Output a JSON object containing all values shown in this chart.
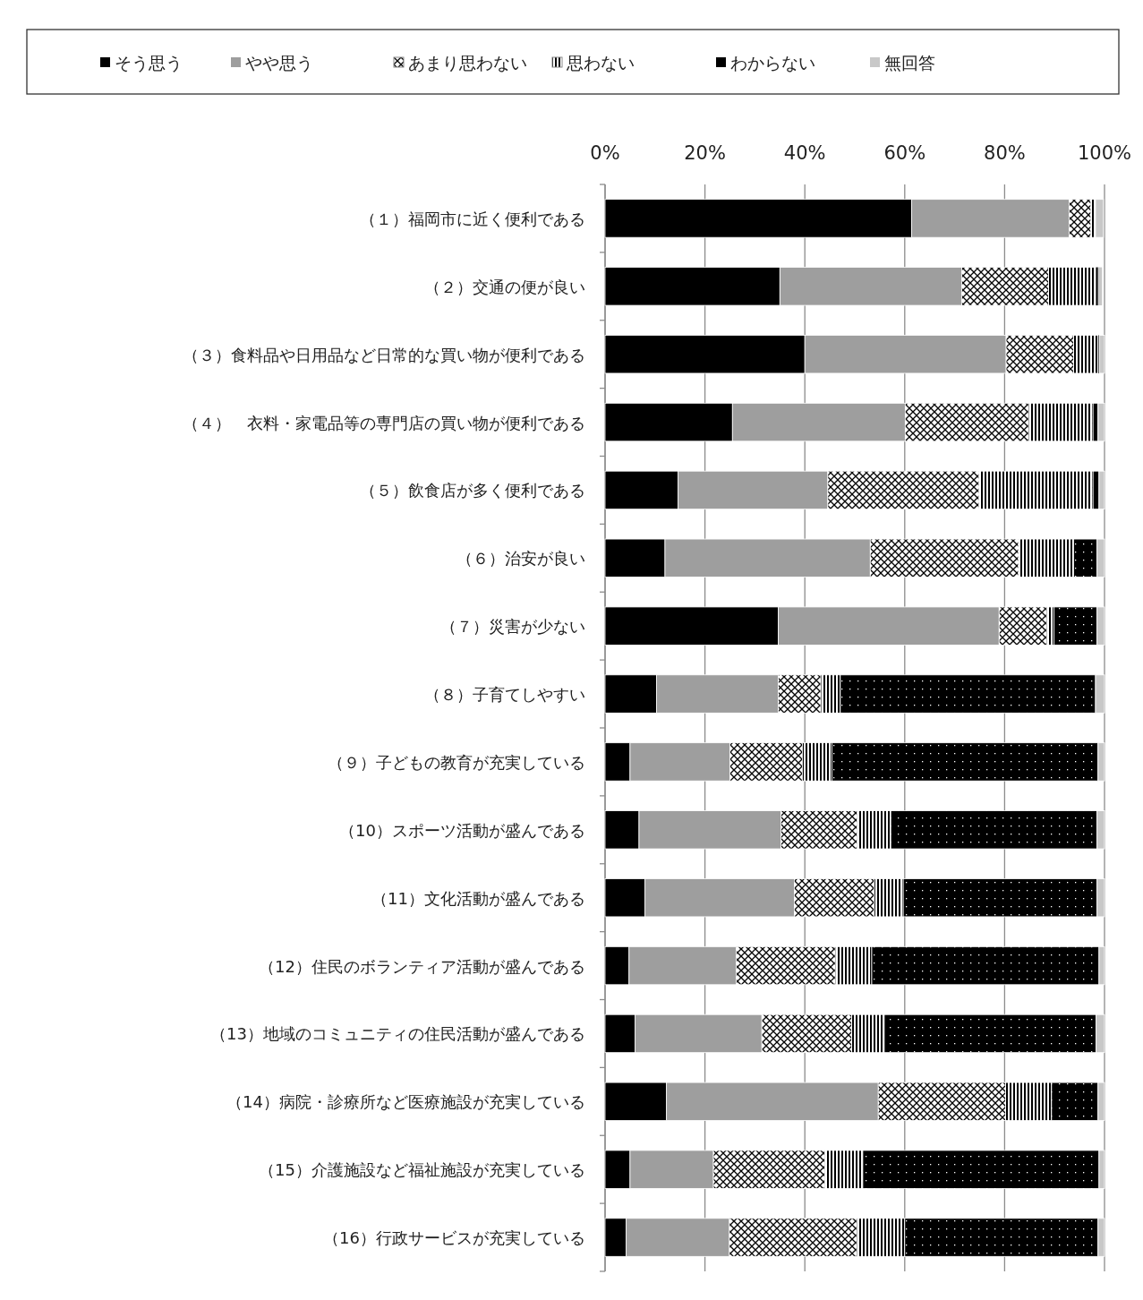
{
  "chart_data": {
    "type": "bar",
    "orientation": "horizontal",
    "stacked": true,
    "legend": "top",
    "grid": "x",
    "categories": [
      "（１）福岡市に近く便利である",
      "（２）交通の便が良い",
      "（３）食料品や日用品など日常的な買い物が便利である",
      "（４）　衣料・家電品等の専門店の買い物が便利である",
      "（５）飲食店が多く便利である",
      "（６）治安が良い",
      "（７）災害が少ない",
      "（８）子育てしやすい",
      "（９）子どもの教育が充実している",
      "（10）スポーツ活動が盛んである",
      "（11）文化活動が盛んである",
      "（12）住民のボランティア活動が盛んである",
      "（13）地域のコミュニティの住民活動が盛んである",
      "（14）病院・診療所など医療施設が充実している",
      "（15）介護施設など福祉施設が充実している",
      "（16）行政サービスが充実している"
    ],
    "xlim": [
      0,
      100
    ],
    "xticks": [
      {
        "value": 0,
        "label": "0%"
      },
      {
        "value": 20,
        "label": "20%"
      },
      {
        "value": 40,
        "label": "40%"
      },
      {
        "value": 60,
        "label": "60%"
      },
      {
        "value": 80,
        "label": "80%"
      },
      {
        "value": 100,
        "label": "100%"
      }
    ],
    "series": [
      {
        "name": "そう思う",
        "color": "#000000",
        "values": [
          61.4,
          35.0,
          40.0,
          25.5,
          14.6,
          12.0,
          34.7,
          10.3,
          5.0,
          6.8,
          8.0,
          4.8,
          6.0,
          12.3,
          5.0,
          4.2
        ]
      },
      {
        "name": "やや思う",
        "color": "#9e9e9e",
        "values": [
          31.5,
          36.4,
          40.3,
          34.6,
          30.0,
          41.1,
          44.2,
          24.4,
          20.0,
          28.4,
          29.9,
          21.5,
          25.4,
          42.4,
          16.7,
          20.7
        ]
      },
      {
        "name": "あまり思わない",
        "color": "#ffffff",
        "values": [
          4.4,
          17.4,
          13.5,
          24.7,
          30.3,
          29.7,
          9.5,
          8.5,
          14.5,
          15.3,
          16.0,
          19.8,
          18.0,
          25.5,
          22.3,
          25.5
        ]
      },
      {
        "name": "思わない",
        "color": "#ffffff",
        "values": [
          0.9,
          9.5,
          5.0,
          12.9,
          22.8,
          11.0,
          1.5,
          3.9,
          5.9,
          6.7,
          5.8,
          7.3,
          6.5,
          9.2,
          7.6,
          9.6
        ]
      },
      {
        "name": "わからない",
        "color": "#000000",
        "values": [
          null,
          0.4,
          0.2,
          1.0,
          1.2,
          4.7,
          8.6,
          51.1,
          53.3,
          41.3,
          38.8,
          45.5,
          42.4,
          9.3,
          47.3,
          38.7
        ]
      },
      {
        "name": "無回答",
        "color": "#c8c8c8",
        "values": [
          1.6,
          0.8,
          1.0,
          1.3,
          1.1,
          1.5,
          1.5,
          1.8,
          1.3,
          1.5,
          1.5,
          1.1,
          1.7,
          1.3,
          1.1,
          1.3
        ]
      }
    ]
  }
}
